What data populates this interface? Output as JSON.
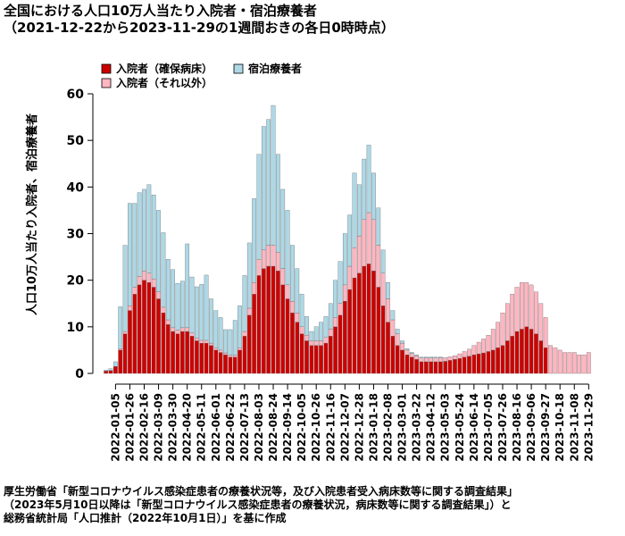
{
  "chart_data": {
    "type": "bar",
    "title": "全国における人口10万人当たり入院者・宿泊療養者",
    "subtitle": "（2021-12-22から2023-11-29の1週間おきの各日0時時点）",
    "ylabel": "人口10万人当たり入院者、宿泊療養者",
    "xlabel": "",
    "ylim": [
      0,
      60
    ],
    "yticks": [
      0,
      10,
      20,
      30,
      40,
      50,
      60
    ],
    "legend_position": "top-left",
    "stacked": true,
    "x": [
      "2021-12-22",
      "2021-12-29",
      "2022-01-05",
      "2022-01-12",
      "2022-01-19",
      "2022-01-26",
      "2022-02-02",
      "2022-02-09",
      "2022-02-16",
      "2022-02-23",
      "2022-03-02",
      "2022-03-09",
      "2022-03-16",
      "2022-03-23",
      "2022-03-30",
      "2022-04-06",
      "2022-04-13",
      "2022-04-20",
      "2022-04-27",
      "2022-05-04",
      "2022-05-11",
      "2022-05-18",
      "2022-05-25",
      "2022-06-01",
      "2022-06-08",
      "2022-06-15",
      "2022-06-22",
      "2022-06-29",
      "2022-07-06",
      "2022-07-13",
      "2022-07-20",
      "2022-07-27",
      "2022-08-03",
      "2022-08-10",
      "2022-08-17",
      "2022-08-24",
      "2022-08-31",
      "2022-09-07",
      "2022-09-14",
      "2022-09-21",
      "2022-09-28",
      "2022-10-05",
      "2022-10-12",
      "2022-10-19",
      "2022-10-26",
      "2022-11-02",
      "2022-11-09",
      "2022-11-16",
      "2022-11-23",
      "2022-11-30",
      "2022-12-07",
      "2022-12-14",
      "2022-12-21",
      "2022-12-28",
      "2023-01-04",
      "2023-01-11",
      "2023-01-18",
      "2023-01-25",
      "2023-02-01",
      "2023-02-08",
      "2023-02-15",
      "2023-02-22",
      "2023-03-01",
      "2023-03-08",
      "2023-03-15",
      "2023-03-22",
      "2023-03-29",
      "2023-04-05",
      "2023-04-12",
      "2023-04-19",
      "2023-04-26",
      "2023-05-03",
      "2023-05-10",
      "2023-05-17",
      "2023-05-24",
      "2023-05-31",
      "2023-06-07",
      "2023-06-14",
      "2023-06-21",
      "2023-06-28",
      "2023-07-05",
      "2023-07-12",
      "2023-07-19",
      "2023-07-26",
      "2023-08-02",
      "2023-08-09",
      "2023-08-16",
      "2023-08-23",
      "2023-08-30",
      "2023-09-06",
      "2023-09-13",
      "2023-09-20",
      "2023-09-27",
      "2023-10-04",
      "2023-10-11",
      "2023-10-18",
      "2023-10-25",
      "2023-11-01",
      "2023-11-08",
      "2023-11-15",
      "2023-11-22",
      "2023-11-29"
    ],
    "tick_labels": [
      "2022-01-05",
      "2022-01-26",
      "2022-02-16",
      "2022-03-09",
      "2022-03-30",
      "2022-04-20",
      "2022-05-11",
      "2022-06-01",
      "2022-06-22",
      "2022-07-13",
      "2022-08-03",
      "2022-08-24",
      "2022-09-14",
      "2022-10-05",
      "2022-10-26",
      "2022-11-16",
      "2022-12-07",
      "2022-12-28",
      "2023-01-18",
      "2023-02-08",
      "2023-03-01",
      "2023-03-22",
      "2023-04-12",
      "2023-05-03",
      "2023-05-24",
      "2023-06-14",
      "2023-07-05",
      "2023-07-26",
      "2023-08-16",
      "2023-09-06",
      "2023-09-27",
      "2023-10-18",
      "2023-11-08",
      "2023-11-29"
    ],
    "series": [
      {
        "name": "入院者（確保病床）",
        "color": "#cc0000",
        "values": [
          0.5,
          0.6,
          1.5,
          5,
          8.5,
          13.5,
          17,
          19,
          20,
          19.5,
          18.5,
          16,
          13,
          10.5,
          9,
          8.5,
          9,
          9,
          8,
          7,
          6.5,
          6.5,
          6,
          5,
          4.5,
          4,
          3.5,
          3.5,
          5,
          8,
          12.5,
          17,
          21,
          22.5,
          23,
          23,
          22,
          19,
          16,
          13,
          11,
          8.5,
          7,
          6,
          6,
          6,
          6.5,
          8,
          10,
          12.5,
          15.5,
          18,
          20.5,
          21.5,
          23,
          23.5,
          22,
          18.5,
          14.5,
          11,
          8,
          6,
          5,
          4,
          3.5,
          3,
          2.5,
          2.5,
          2.5,
          2.5,
          2.5,
          2.6,
          2.8,
          3,
          3.2,
          3.5,
          3.7,
          4,
          4.2,
          4.4,
          4.7,
          5,
          5.5,
          6,
          7,
          8,
          9,
          9.5,
          10,
          9.5,
          8.5,
          7,
          5.5,
          0,
          0,
          0,
          0,
          0,
          0,
          0,
          0,
          0
        ]
      },
      {
        "name": "入院者（それ以外）",
        "color": "#ffb6c1",
        "values": [
          0,
          0,
          0,
          0.3,
          0.5,
          1,
          1.5,
          1.8,
          2,
          2,
          1.8,
          1.5,
          1.2,
          1,
          0.8,
          0.8,
          0.8,
          0.8,
          0.7,
          0.6,
          0.6,
          0.6,
          0.5,
          0.5,
          0.5,
          0.4,
          0.4,
          0.4,
          0.5,
          1,
          1.5,
          2.5,
          3.5,
          4,
          4.5,
          4.5,
          4,
          3.5,
          3,
          2.5,
          2,
          1.5,
          1.2,
          1,
          1,
          1,
          1.2,
          1.5,
          2,
          2.5,
          3.5,
          5,
          6.5,
          8,
          10,
          11,
          11,
          9,
          7,
          5,
          3.5,
          2.5,
          1.5,
          1,
          0.8,
          0.8,
          0.8,
          0.8,
          0.8,
          0.8,
          0.8,
          0.8,
          0.8,
          0.8,
          1,
          1.2,
          1.5,
          2,
          2.5,
          3,
          3.5,
          4.5,
          5.5,
          7,
          8,
          9,
          9.5,
          10,
          9.5,
          9.5,
          9,
          8,
          6.5,
          6,
          5.5,
          5,
          4.5,
          4.5,
          4.5,
          4,
          4,
          4.5
        ]
      },
      {
        "name": "宿泊療養者",
        "color": "#add8e6",
        "values": [
          0.2,
          0.4,
          1,
          9,
          18.5,
          22,
          18,
          18,
          17.5,
          19,
          18,
          17.5,
          16,
          13,
          12.5,
          10,
          10,
          18,
          12,
          11,
          12,
          14,
          9.5,
          8,
          7,
          5,
          5.5,
          7.5,
          9,
          12,
          14,
          18,
          22.5,
          26.5,
          27,
          30,
          21,
          17,
          16,
          12,
          9.5,
          7,
          4,
          2,
          3,
          4,
          4.5,
          5.5,
          8,
          9,
          11,
          11,
          16,
          11,
          13,
          14.5,
          10,
          8,
          5,
          3.5,
          2,
          1,
          0.5,
          0.3,
          0.2,
          0.2,
          0.2,
          0.2,
          0.2,
          0.2,
          0.2,
          0,
          0,
          0,
          0,
          0,
          0,
          0,
          0,
          0,
          0,
          0,
          0,
          0,
          0,
          0,
          0,
          0,
          0,
          0,
          0,
          0,
          0,
          0,
          0,
          0,
          0,
          0,
          0,
          0,
          0,
          0
        ]
      }
    ]
  },
  "source_lines": [
    "厚生労働省「新型コロナウイルス感染症患者の療養状況等，及び入院患者受入病床数等に関する調査結果」",
    "（2023年5月10日以降は「新型コロナウイルス感染症患者の療養状況，病床数等に関する調査結果」）と",
    "総務省統計局「人口推計（2022年10月1日）」を基に作成"
  ]
}
